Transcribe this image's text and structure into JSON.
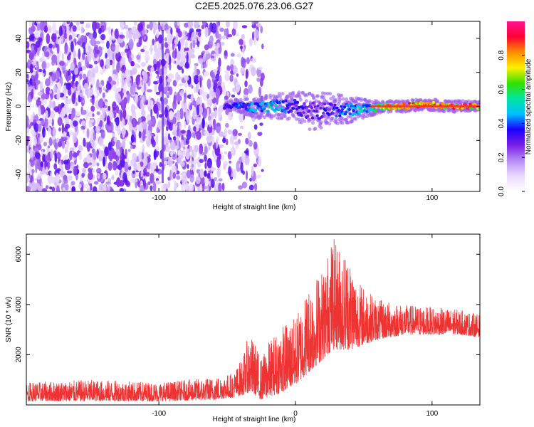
{
  "title": "C2E5.2025.076.23.06.G27",
  "chart_data": [
    {
      "type": "heatmap",
      "panel": "spectrogram",
      "xlabel": "Height of straight line (km)",
      "ylabel": "Frequency (Hz)",
      "xlim": [
        -197,
        135
      ],
      "ylim": [
        -50,
        50
      ],
      "xticks": [
        -100,
        0,
        100
      ],
      "yticks": [
        -40,
        -20,
        0,
        20,
        40
      ],
      "colorbar": {
        "label": "Normalized spectral amplitude",
        "range": [
          0,
          1
        ],
        "ticks": [
          "0.0",
          "0.2",
          "0.4",
          "0.6",
          "0.8"
        ],
        "colors": [
          "#ffffff",
          "#ead9ff",
          "#b58cf5",
          "#7a1ee6",
          "#1a00ff",
          "#00bfff",
          "#00e5a0",
          "#33e000",
          "#fff000",
          "#ff8c00",
          "#ff0033",
          "#ff1493"
        ]
      },
      "noise_region": {
        "x_range": [
          -197,
          -24
        ],
        "freq_range": [
          -50,
          50
        ],
        "level": 0.12
      },
      "signal_track": [
        {
          "x": -52,
          "freq": 0,
          "width_hz": 2,
          "amp": 0.35
        },
        {
          "x": -45,
          "freq": 1,
          "width_hz": 3,
          "amp": 0.4
        },
        {
          "x": -30,
          "freq": -1,
          "width_hz": 5,
          "amp": 0.45
        },
        {
          "x": -20,
          "freq": 0,
          "width_hz": 6,
          "amp": 0.55
        },
        {
          "x": 0,
          "freq": 0,
          "width_hz": 8,
          "amp": 0.35
        },
        {
          "x": 10,
          "freq": -3,
          "width_hz": 10,
          "amp": 0.3
        },
        {
          "x": 25,
          "freq": -2,
          "width_hz": 9,
          "amp": 0.35
        },
        {
          "x": 40,
          "freq": -2,
          "width_hz": 7,
          "amp": 0.45
        },
        {
          "x": 55,
          "freq": -1,
          "width_hz": 4,
          "amp": 0.55
        },
        {
          "x": 65,
          "freq": 0,
          "width_hz": 3,
          "amp": 0.8
        },
        {
          "x": 80,
          "freq": 0,
          "width_hz": 3,
          "amp": 0.9
        },
        {
          "x": 90,
          "freq": 1,
          "width_hz": 3,
          "amp": 0.85
        },
        {
          "x": 100,
          "freq": 1,
          "width_hz": 3,
          "amp": 0.85
        },
        {
          "x": 110,
          "freq": 0,
          "width_hz": 3,
          "amp": 0.85
        },
        {
          "x": 135,
          "freq": 0,
          "width_hz": 3,
          "amp": 0.85
        }
      ]
    },
    {
      "type": "line",
      "panel": "snr",
      "xlabel": "Height of straight line (km)",
      "ylabel": "SNR (10 * v/v)",
      "xlim": [
        -197,
        135
      ],
      "ylim": [
        0,
        6800
      ],
      "xticks": [
        -100,
        0,
        100
      ],
      "yticks": [
        2000,
        4000,
        6000
      ],
      "color": "#ee3333",
      "envelope": {
        "x": [
          -197,
          -150,
          -100,
          -60,
          -45,
          -38,
          -34,
          -30,
          -25,
          -20,
          -10,
          0,
          10,
          20,
          27,
          35,
          40,
          45,
          60,
          80,
          100,
          120,
          135
        ],
        "low": [
          150,
          150,
          150,
          200,
          300,
          400,
          500,
          400,
          200,
          300,
          500,
          800,
          1300,
          1800,
          2200,
          2200,
          2200,
          2300,
          2600,
          2800,
          2800,
          2800,
          2700
        ],
        "high": [
          900,
          1000,
          900,
          1100,
          1300,
          2000,
          2900,
          2500,
          1800,
          2500,
          3200,
          3500,
          4800,
          5500,
          6700,
          6200,
          6000,
          5000,
          4200,
          4000,
          3900,
          3800,
          3600
        ]
      }
    }
  ]
}
